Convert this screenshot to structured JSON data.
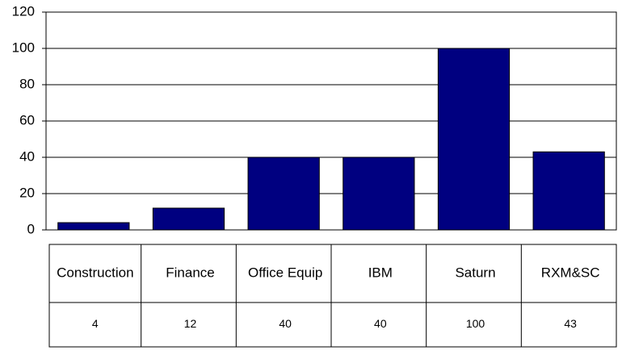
{
  "chart_data": {
    "type": "bar",
    "categories": [
      "Construction",
      "Finance",
      "Office Equip",
      "IBM",
      "Saturn",
      "RXM&SC"
    ],
    "values": [
      4,
      12,
      40,
      40,
      100,
      43
    ],
    "color": "#000080",
    "ylim": [
      0,
      120
    ],
    "yticks": [
      0,
      20,
      40,
      60,
      80,
      100,
      120
    ],
    "grid": true
  }
}
